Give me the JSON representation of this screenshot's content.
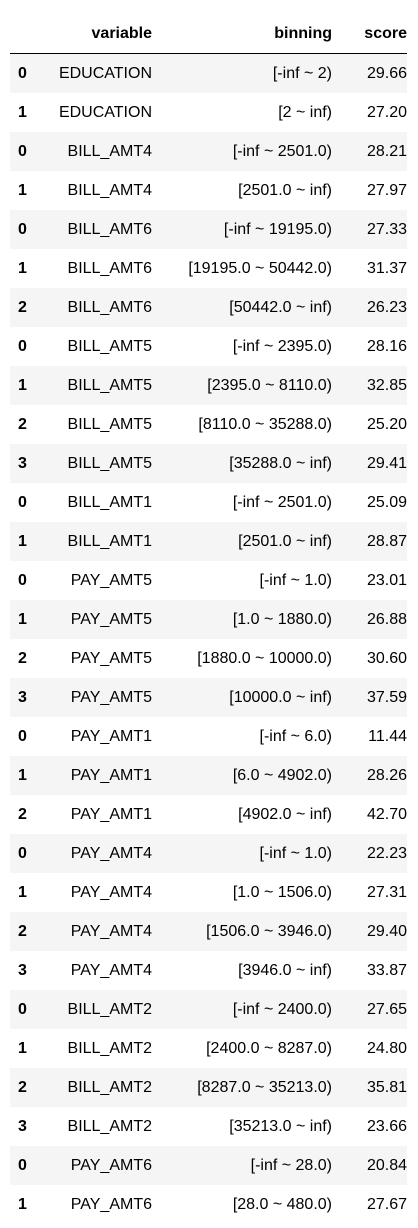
{
  "table": {
    "headers": {
      "index": "",
      "variable": "variable",
      "binning": "binning",
      "score": "score"
    },
    "rows": [
      {
        "index": "0",
        "variable": "EDUCATION",
        "binning": "[-inf ~ 2)",
        "score": "29.66"
      },
      {
        "index": "1",
        "variable": "EDUCATION",
        "binning": "[2 ~ inf)",
        "score": "27.20"
      },
      {
        "index": "0",
        "variable": "BILL_AMT4",
        "binning": "[-inf ~ 2501.0)",
        "score": "28.21"
      },
      {
        "index": "1",
        "variable": "BILL_AMT4",
        "binning": "[2501.0 ~ inf)",
        "score": "27.97"
      },
      {
        "index": "0",
        "variable": "BILL_AMT6",
        "binning": "[-inf ~ 19195.0)",
        "score": "27.33"
      },
      {
        "index": "1",
        "variable": "BILL_AMT6",
        "binning": "[19195.0 ~ 50442.0)",
        "score": "31.37"
      },
      {
        "index": "2",
        "variable": "BILL_AMT6",
        "binning": "[50442.0 ~ inf)",
        "score": "26.23"
      },
      {
        "index": "0",
        "variable": "BILL_AMT5",
        "binning": "[-inf ~ 2395.0)",
        "score": "28.16"
      },
      {
        "index": "1",
        "variable": "BILL_AMT5",
        "binning": "[2395.0 ~ 8110.0)",
        "score": "32.85"
      },
      {
        "index": "2",
        "variable": "BILL_AMT5",
        "binning": "[8110.0 ~ 35288.0)",
        "score": "25.20"
      },
      {
        "index": "3",
        "variable": "BILL_AMT5",
        "binning": "[35288.0 ~ inf)",
        "score": "29.41"
      },
      {
        "index": "0",
        "variable": "BILL_AMT1",
        "binning": "[-inf ~ 2501.0)",
        "score": "25.09"
      },
      {
        "index": "1",
        "variable": "BILL_AMT1",
        "binning": "[2501.0 ~ inf)",
        "score": "28.87"
      },
      {
        "index": "0",
        "variable": "PAY_AMT5",
        "binning": "[-inf ~ 1.0)",
        "score": "23.01"
      },
      {
        "index": "1",
        "variable": "PAY_AMT5",
        "binning": "[1.0 ~ 1880.0)",
        "score": "26.88"
      },
      {
        "index": "2",
        "variable": "PAY_AMT5",
        "binning": "[1880.0 ~ 10000.0)",
        "score": "30.60"
      },
      {
        "index": "3",
        "variable": "PAY_AMT5",
        "binning": "[10000.0 ~ inf)",
        "score": "37.59"
      },
      {
        "index": "0",
        "variable": "PAY_AMT1",
        "binning": "[-inf ~ 6.0)",
        "score": "11.44"
      },
      {
        "index": "1",
        "variable": "PAY_AMT1",
        "binning": "[6.0 ~ 4902.0)",
        "score": "28.26"
      },
      {
        "index": "2",
        "variable": "PAY_AMT1",
        "binning": "[4902.0 ~ inf)",
        "score": "42.70"
      },
      {
        "index": "0",
        "variable": "PAY_AMT4",
        "binning": "[-inf ~ 1.0)",
        "score": "22.23"
      },
      {
        "index": "1",
        "variable": "PAY_AMT4",
        "binning": "[1.0 ~ 1506.0)",
        "score": "27.31"
      },
      {
        "index": "2",
        "variable": "PAY_AMT4",
        "binning": "[1506.0 ~ 3946.0)",
        "score": "29.40"
      },
      {
        "index": "3",
        "variable": "PAY_AMT4",
        "binning": "[3946.0 ~ inf)",
        "score": "33.87"
      },
      {
        "index": "0",
        "variable": "BILL_AMT2",
        "binning": "[-inf ~ 2400.0)",
        "score": "27.65"
      },
      {
        "index": "1",
        "variable": "BILL_AMT2",
        "binning": "[2400.0 ~ 8287.0)",
        "score": "24.80"
      },
      {
        "index": "2",
        "variable": "BILL_AMT2",
        "binning": "[8287.0 ~ 35213.0)",
        "score": "35.81"
      },
      {
        "index": "3",
        "variable": "BILL_AMT2",
        "binning": "[35213.0 ~ inf)",
        "score": "23.66"
      },
      {
        "index": "0",
        "variable": "PAY_AMT6",
        "binning": "[-inf ~ 28.0)",
        "score": "20.84"
      },
      {
        "index": "1",
        "variable": "PAY_AMT6",
        "binning": "[28.0 ~ 480.0)",
        "score": "27.67"
      }
    ]
  }
}
